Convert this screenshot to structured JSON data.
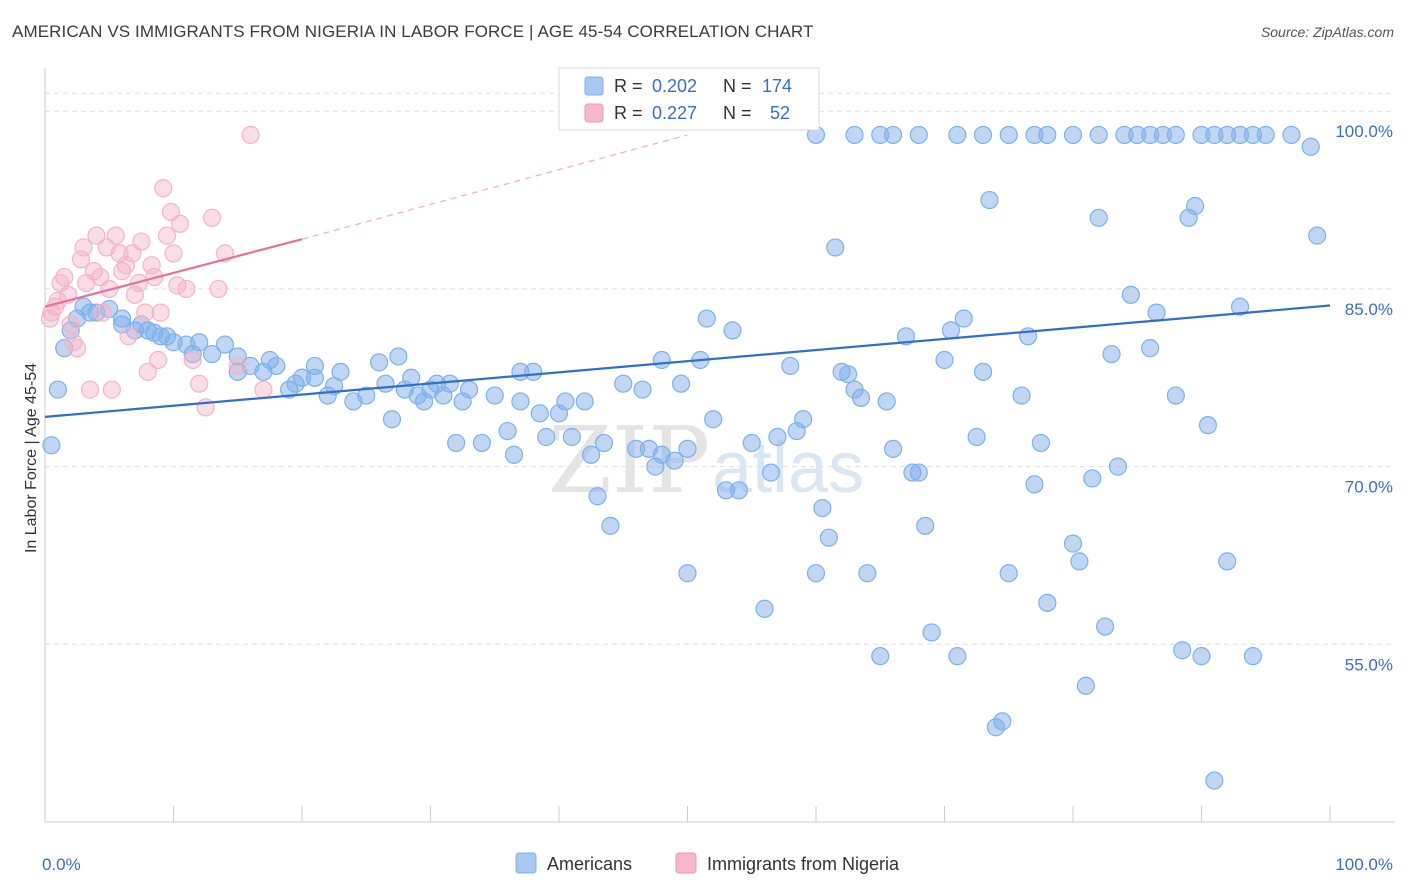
{
  "header": {
    "title": "AMERICAN VS IMMIGRANTS FROM NIGERIA IN LABOR FORCE | AGE 45-54 CORRELATION CHART",
    "source": "Source: ZipAtlas.com"
  },
  "watermark": {
    "part1": "ZIP",
    "part2": "atlas"
  },
  "chart_data": {
    "type": "scatter",
    "ylabel": "In Labor Force | Age 45-54",
    "xlim": [
      0,
      100
    ],
    "ylim": [
      40,
      105
    ],
    "x_tick_labels": {
      "left": "0.0%",
      "right": "100.0%"
    },
    "y_ticks": [
      {
        "value": 55,
        "label": "55.0%"
      },
      {
        "value": 70,
        "label": "70.0%"
      },
      {
        "value": 85,
        "label": "85.0%"
      },
      {
        "value": 100,
        "label": "100.0%"
      }
    ],
    "grid": "horizontal-dashed",
    "legend_placement": "top-center",
    "stats_legend": [
      {
        "r_label": "R = ",
        "r_value": "0.202",
        "n_label": "N = ",
        "n_value": "174",
        "color": "#a8c8f0"
      },
      {
        "r_label": "R = ",
        "r_value": "0.227",
        "n_label": "N = ",
        "n_value": "52",
        "color": "#f5b8cb"
      }
    ],
    "series": [
      {
        "name": "Americans",
        "color": "#7fb0ea",
        "line_color": "#2f6fd0",
        "trend": {
          "x1": 0,
          "y1": 74.2,
          "x2": 100,
          "y2": 83.6
        },
        "points": [
          [
            0.5,
            71.8
          ],
          [
            1,
            76.5
          ],
          [
            1.5,
            80
          ],
          [
            2,
            81.5
          ],
          [
            2.5,
            82.5
          ],
          [
            3,
            83.5
          ],
          [
            3.5,
            83
          ],
          [
            4,
            83
          ],
          [
            5,
            83.3
          ],
          [
            6,
            82.5
          ],
          [
            6,
            82
          ],
          [
            7,
            81.5
          ],
          [
            7.5,
            82
          ],
          [
            8,
            81.5
          ],
          [
            8.5,
            81.3
          ],
          [
            9,
            81
          ],
          [
            9.5,
            81
          ],
          [
            10,
            80.5
          ],
          [
            11,
            80.3
          ],
          [
            11.5,
            79.5
          ],
          [
            12,
            80.5
          ],
          [
            13,
            79.5
          ],
          [
            14,
            80.3
          ],
          [
            15,
            79.3
          ],
          [
            15,
            78
          ],
          [
            16,
            78.5
          ],
          [
            17,
            78
          ],
          [
            17.5,
            79
          ],
          [
            18,
            78.5
          ],
          [
            19,
            76.5
          ],
          [
            19.5,
            77
          ],
          [
            20,
            77.5
          ],
          [
            21,
            77.5
          ],
          [
            21,
            78.5
          ],
          [
            22,
            76
          ],
          [
            22.5,
            76.8
          ],
          [
            23,
            78
          ],
          [
            24,
            75.5
          ],
          [
            25,
            76
          ],
          [
            26,
            78.8
          ],
          [
            26.5,
            77
          ],
          [
            27,
            74
          ],
          [
            27.5,
            79.3
          ],
          [
            28,
            76.5
          ],
          [
            28.5,
            77.5
          ],
          [
            29,
            76
          ],
          [
            29.5,
            75.5
          ],
          [
            30,
            76.5
          ],
          [
            30.5,
            77
          ],
          [
            31,
            76
          ],
          [
            31.5,
            77
          ],
          [
            32,
            72
          ],
          [
            32.5,
            75.5
          ],
          [
            33,
            76.5
          ],
          [
            34,
            72
          ],
          [
            35,
            76
          ],
          [
            36,
            73
          ],
          [
            36.5,
            71
          ],
          [
            37,
            75.5
          ],
          [
            37,
            78
          ],
          [
            38,
            78
          ],
          [
            38.5,
            74.5
          ],
          [
            39,
            72.5
          ],
          [
            40,
            74.5
          ],
          [
            40.5,
            75.5
          ],
          [
            41,
            72.5
          ],
          [
            42,
            75.5
          ],
          [
            42.5,
            71
          ],
          [
            43,
            67.5
          ],
          [
            43.5,
            72
          ],
          [
            44,
            65
          ],
          [
            45,
            77
          ],
          [
            46,
            71.5
          ],
          [
            46.5,
            76.5
          ],
          [
            47,
            71.5
          ],
          [
            47.5,
            70
          ],
          [
            48,
            79
          ],
          [
            48,
            71
          ],
          [
            49,
            70.5
          ],
          [
            49.5,
            77
          ],
          [
            50,
            61
          ],
          [
            50,
            71.5
          ],
          [
            51,
            79
          ],
          [
            51.5,
            82.5
          ],
          [
            52,
            74
          ],
          [
            53,
            68
          ],
          [
            53.5,
            81.5
          ],
          [
            54,
            68
          ],
          [
            55,
            72
          ],
          [
            56,
            58
          ],
          [
            56.5,
            69.5
          ],
          [
            57,
            72.5
          ],
          [
            58,
            78.5
          ],
          [
            58.5,
            73
          ],
          [
            59,
            74
          ],
          [
            60,
            61
          ],
          [
            60.5,
            66.5
          ],
          [
            61,
            64
          ],
          [
            61.5,
            88.5
          ],
          [
            62,
            78
          ],
          [
            62.5,
            77.8
          ],
          [
            63,
            76.5
          ],
          [
            63.5,
            75.8
          ],
          [
            64,
            61
          ],
          [
            65,
            54
          ],
          [
            65.5,
            75.5
          ],
          [
            66,
            71.5
          ],
          [
            67,
            81
          ],
          [
            67.5,
            69.5
          ],
          [
            68,
            69.5
          ],
          [
            68.5,
            65
          ],
          [
            69,
            56
          ],
          [
            70,
            79
          ],
          [
            70.5,
            81.5
          ],
          [
            71,
            54
          ],
          [
            71.5,
            82.5
          ],
          [
            72.5,
            72.5
          ],
          [
            73,
            78
          ],
          [
            73.5,
            92.5
          ],
          [
            74,
            48
          ],
          [
            74.5,
            48.5
          ],
          [
            75,
            61
          ],
          [
            76,
            76
          ],
          [
            76.5,
            81
          ],
          [
            77,
            68.5
          ],
          [
            77.5,
            72
          ],
          [
            78,
            58.5
          ],
          [
            80,
            63.5
          ],
          [
            80.5,
            62
          ],
          [
            81,
            51.5
          ],
          [
            81.5,
            69
          ],
          [
            82,
            91
          ],
          [
            82.5,
            56.5
          ],
          [
            83,
            79.5
          ],
          [
            83.5,
            70
          ],
          [
            84.5,
            84.5
          ],
          [
            86,
            80
          ],
          [
            86.5,
            83
          ],
          [
            88,
            76
          ],
          [
            88.5,
            54.5
          ],
          [
            89,
            91
          ],
          [
            89.5,
            92
          ],
          [
            90,
            54
          ],
          [
            90.5,
            73.5
          ],
          [
            91,
            43.5
          ],
          [
            92,
            62
          ],
          [
            93,
            83.5
          ],
          [
            94,
            54
          ],
          [
            65,
            98
          ],
          [
            68,
            98
          ],
          [
            71,
            98
          ],
          [
            75,
            98
          ],
          [
            77,
            98
          ],
          [
            80,
            98
          ],
          [
            82,
            98
          ],
          [
            84,
            98
          ],
          [
            85,
            98
          ],
          [
            87,
            98
          ],
          [
            88,
            98
          ],
          [
            90,
            98
          ],
          [
            91,
            98
          ],
          [
            93,
            98
          ],
          [
            94,
            98
          ],
          [
            97,
            98
          ],
          [
            98.5,
            97
          ],
          [
            99,
            89.5
          ],
          [
            60,
            98
          ],
          [
            63,
            98
          ],
          [
            66,
            98
          ],
          [
            73,
            98
          ],
          [
            78,
            98
          ],
          [
            86,
            98
          ],
          [
            92,
            98
          ],
          [
            95,
            98
          ]
        ]
      },
      {
        "name": "Immigrants from Nigeria",
        "color": "#f5b3c7",
        "line_color": "#e8709a",
        "trend": {
          "x1": 0,
          "y1": 83.5,
          "x2": 20,
          "y2": 89.2
        },
        "trend_ext": {
          "x1": 20,
          "y1": 89.2,
          "x2": 50,
          "y2": 98
        },
        "points": [
          [
            0.3,
            82.5
          ],
          [
            0.5,
            83
          ],
          [
            0.8,
            83.5
          ],
          [
            1,
            84
          ],
          [
            1.2,
            85.5
          ],
          [
            1.5,
            86
          ],
          [
            1.8,
            84.5
          ],
          [
            2,
            82
          ],
          [
            2.2,
            80.5
          ],
          [
            2.5,
            80
          ],
          [
            2.8,
            87.5
          ],
          [
            3,
            88.5
          ],
          [
            3.2,
            85.5
          ],
          [
            3.5,
            76.5
          ],
          [
            3.8,
            86.5
          ],
          [
            4,
            89.5
          ],
          [
            4.3,
            86
          ],
          [
            4.5,
            83
          ],
          [
            4.8,
            88.5
          ],
          [
            5,
            85
          ],
          [
            5.2,
            76.5
          ],
          [
            5.5,
            89.5
          ],
          [
            5.8,
            88
          ],
          [
            6,
            86.5
          ],
          [
            6.3,
            87
          ],
          [
            6.5,
            81
          ],
          [
            6.8,
            88
          ],
          [
            7,
            84.5
          ],
          [
            7.3,
            85.5
          ],
          [
            7.5,
            89
          ],
          [
            7.8,
            83
          ],
          [
            8,
            78
          ],
          [
            8.3,
            87
          ],
          [
            8.5,
            86
          ],
          [
            8.8,
            79
          ],
          [
            9,
            83
          ],
          [
            9.2,
            93.5
          ],
          [
            9.5,
            89.5
          ],
          [
            9.8,
            91.5
          ],
          [
            10,
            88
          ],
          [
            10.3,
            85.3
          ],
          [
            10.5,
            90.5
          ],
          [
            11,
            85
          ],
          [
            11.5,
            79
          ],
          [
            12,
            77
          ],
          [
            12.5,
            75
          ],
          [
            13,
            91
          ],
          [
            13.5,
            85
          ],
          [
            14,
            88
          ],
          [
            16,
            98
          ],
          [
            15,
            78.5
          ],
          [
            17,
            76.5
          ]
        ]
      }
    ]
  },
  "bottom_legend": [
    {
      "label": "Americans",
      "color": "#a8c8f0"
    },
    {
      "label": "Immigrants from Nigeria",
      "color": "#f5b8cb"
    }
  ]
}
